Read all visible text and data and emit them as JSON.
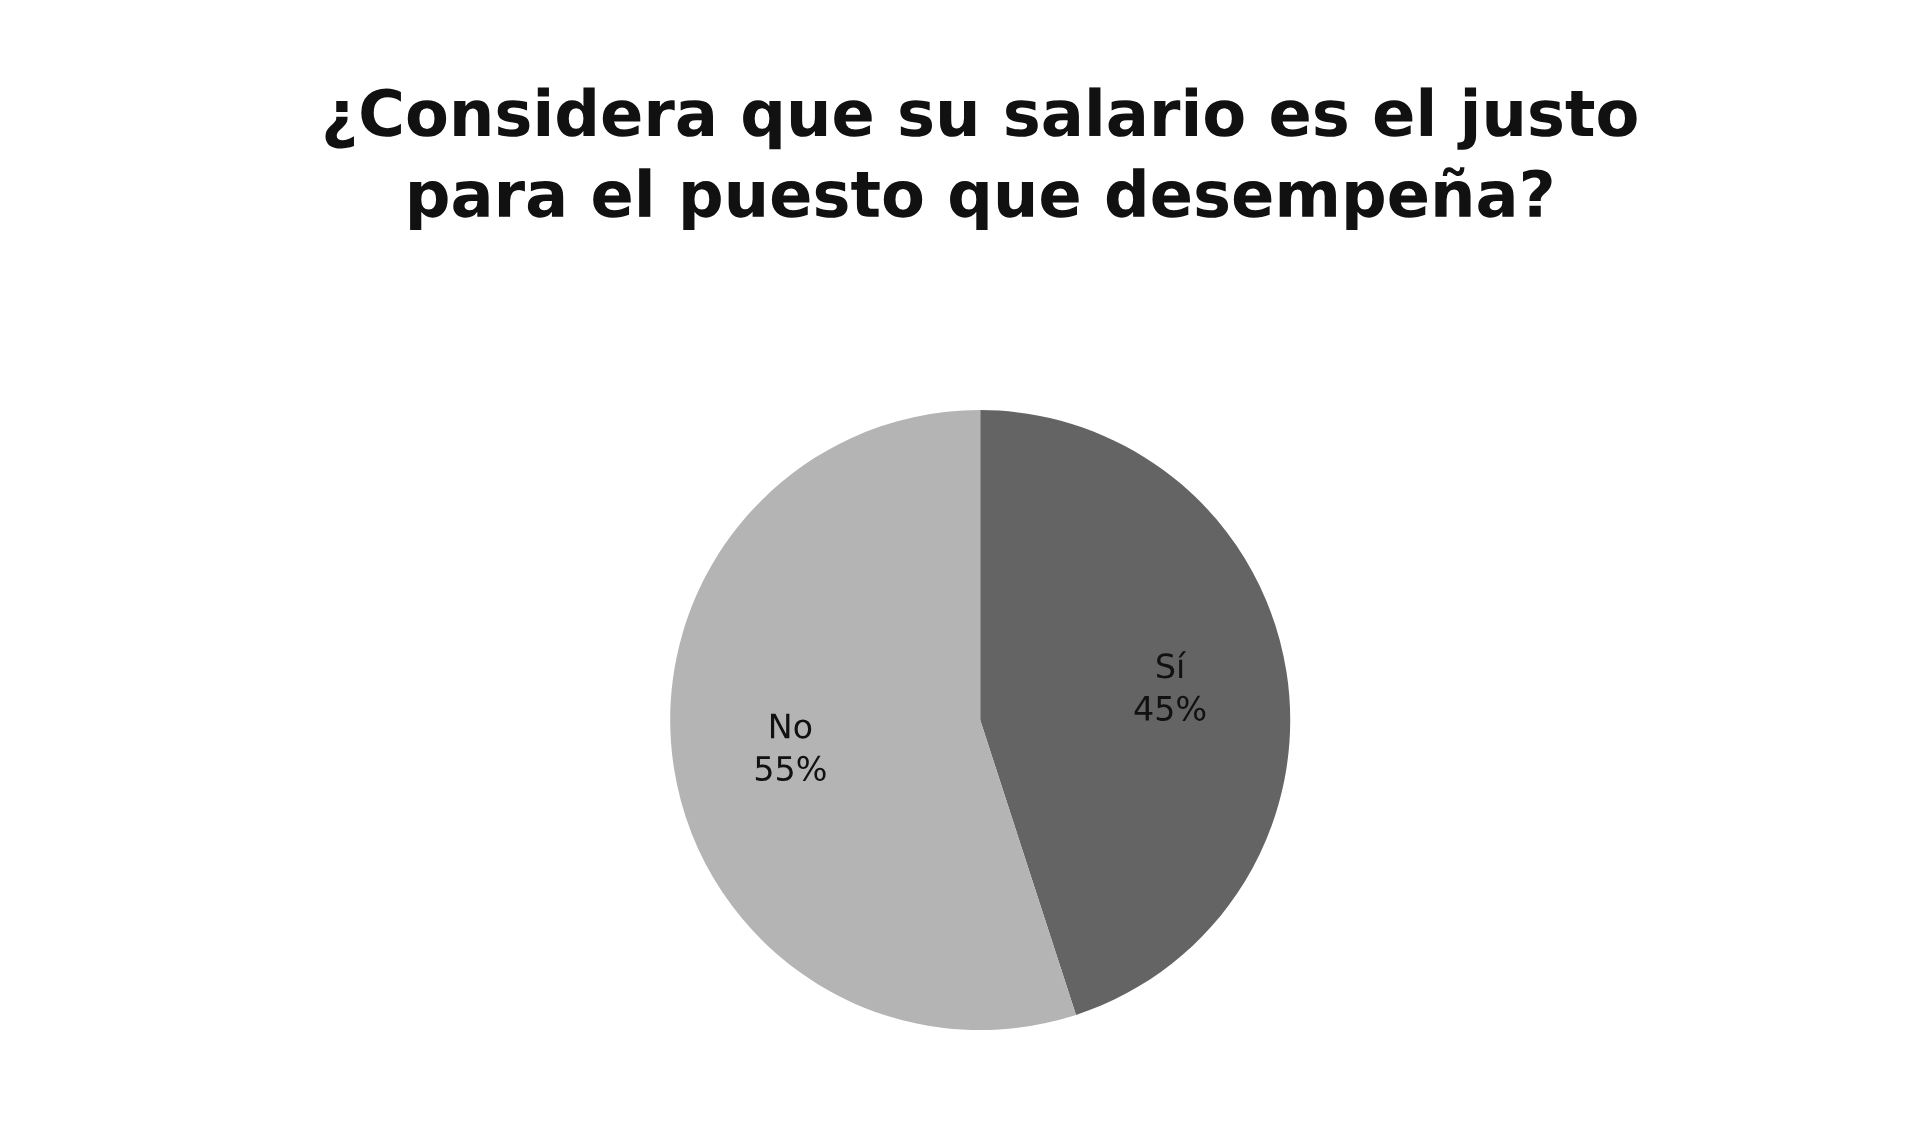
{
  "chart_data": {
    "type": "pie",
    "title": "¿Considera que su salario es el justo\npara el puesto que desempeña?",
    "categories": [
      "Sí",
      "No"
    ],
    "values": [
      45,
      55
    ],
    "colors": [
      "#646464",
      "#b4b4b4"
    ],
    "value_labels": [
      "45%",
      "55%"
    ]
  }
}
